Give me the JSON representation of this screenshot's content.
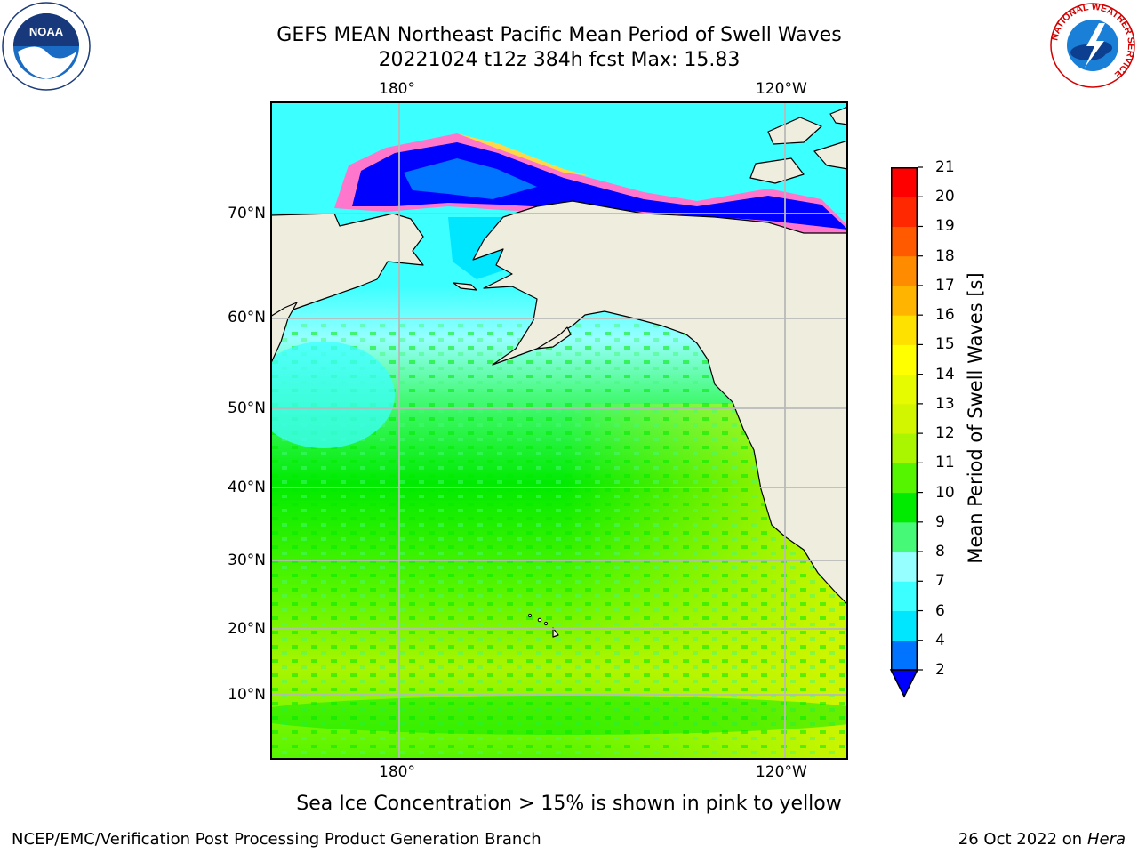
{
  "header": {
    "title_line1": "GEFS MEAN Northeast Pacific Mean Period of Swell Waves",
    "title_line2": "20221024 t12z 384h fcst   Max: 15.83"
  },
  "map": {
    "top_axis_labels": [
      "180°",
      "120°W"
    ],
    "bottom_axis_labels": [
      "180°",
      "120°W"
    ],
    "lat_labels": [
      "70°N",
      "60°N",
      "50°N",
      "40°N",
      "30°N",
      "20°N",
      "10°N"
    ],
    "colors": {
      "land": "#efedde",
      "coast": "#000000",
      "grid": "#b9b9b9"
    }
  },
  "colorbar": {
    "label": "Mean Period of Swell Waves [s]",
    "ticks": [
      "2",
      "4",
      "6",
      "7",
      "8",
      "9",
      "10",
      "11",
      "12",
      "13",
      "14",
      "15",
      "16",
      "17",
      "18",
      "19",
      "20",
      "21"
    ],
    "colors": [
      "#0073ff",
      "#00e6ff",
      "#3cffff",
      "#96ffff",
      "#46fa78",
      "#00eb00",
      "#55f500",
      "#aaf500",
      "#d2f500",
      "#e6fa00",
      "#ffff00",
      "#ffe100",
      "#ffb400",
      "#ff8c00",
      "#ff5a00",
      "#ff2800",
      "#ff0000"
    ],
    "under_color": "#0000ff"
  },
  "notes": {
    "ice": "Sea Ice Concentration > 15% is shown in pink to yellow"
  },
  "footer": {
    "left": "NCEP/EMC/Verification Post Processing Product Generation Branch",
    "right_date": "26 Oct 2022 on",
    "right_machine": "Hera"
  },
  "logos": {
    "noaa_text": "NOAA",
    "nws_ring_text": "NATIONAL WEATHER SERVICE"
  }
}
